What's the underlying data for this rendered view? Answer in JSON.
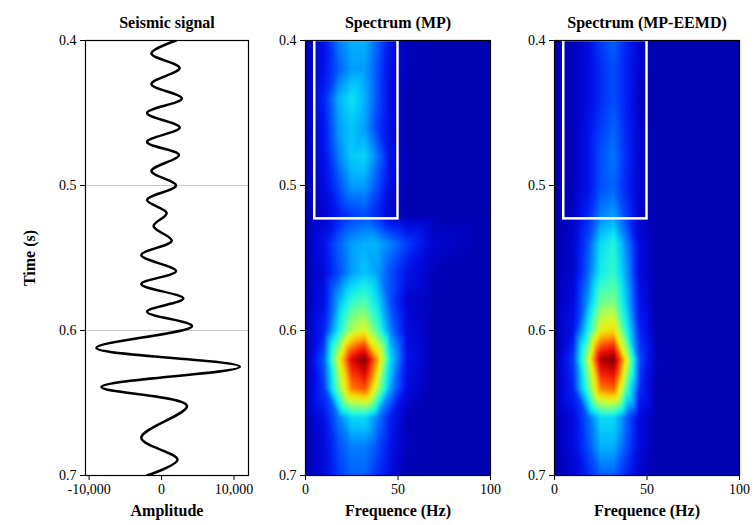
{
  "chart_data": [
    {
      "type": "line",
      "title": "Seismic signal",
      "xlabel": "Amplitude",
      "ylabel": "Time (s)",
      "color": "#000000",
      "grid": true,
      "x": [
        2000,
        -1400,
        2500,
        -1400,
        2800,
        -2000,
        2500,
        -2000,
        2400,
        -1400,
        2000,
        -2000,
        700,
        -1100,
        1400,
        -2800,
        2000,
        -2800,
        3000,
        -2000,
        4200,
        -9000,
        10800,
        -8300,
        3500,
        -2800,
        2200,
        -2000
      ],
      "y": [
        0.4,
        0.409,
        0.419,
        0.43,
        0.44,
        0.45,
        0.46,
        0.47,
        0.479,
        0.49,
        0.5,
        0.51,
        0.519,
        0.528,
        0.538,
        0.548,
        0.559,
        0.568,
        0.578,
        0.587,
        0.597,
        0.612,
        0.625,
        0.639,
        0.652,
        0.674,
        0.689,
        0.7
      ],
      "xlim": [
        -10500,
        12000
      ],
      "xticks": [
        {
          "value": -10000,
          "label": "-10,000"
        },
        0,
        {
          "value": 10000,
          "label": "10,000"
        }
      ],
      "ylim": [
        0.4,
        0.7
      ],
      "yticks": [
        0.4,
        0.5,
        0.6,
        0.7
      ]
    },
    {
      "type": "heatmap",
      "title": "Spectrum (MP)",
      "xlabel": "Frequence (Hz)",
      "x": [
        0,
        10,
        18,
        25,
        32,
        39,
        46,
        55,
        70,
        100
      ],
      "y": [
        0.4,
        0.42,
        0.44,
        0.46,
        0.48,
        0.5,
        0.52,
        0.54,
        0.56,
        0.58,
        0.6,
        0.62,
        0.64,
        0.66,
        0.68,
        0.7
      ],
      "z": [
        [
          0.05,
          0.12,
          0.25,
          0.3,
          0.3,
          0.22,
          0.12,
          0.06,
          0.05,
          0.05
        ],
        [
          0.05,
          0.12,
          0.22,
          0.28,
          0.28,
          0.2,
          0.1,
          0.06,
          0.05,
          0.05
        ],
        [
          0.05,
          0.15,
          0.3,
          0.36,
          0.3,
          0.2,
          0.1,
          0.05,
          0.05,
          0.05
        ],
        [
          0.05,
          0.13,
          0.28,
          0.32,
          0.28,
          0.18,
          0.1,
          0.05,
          0.05,
          0.05
        ],
        [
          0.05,
          0.12,
          0.25,
          0.33,
          0.34,
          0.24,
          0.12,
          0.05,
          0.05,
          0.05
        ],
        [
          0.05,
          0.1,
          0.2,
          0.28,
          0.28,
          0.2,
          0.1,
          0.05,
          0.05,
          0.05
        ],
        [
          0.05,
          0.08,
          0.14,
          0.18,
          0.2,
          0.15,
          0.08,
          0.05,
          0.05,
          0.05
        ],
        [
          0.05,
          0.12,
          0.22,
          0.28,
          0.3,
          0.3,
          0.25,
          0.18,
          0.08,
          0.05
        ],
        [
          0.05,
          0.1,
          0.2,
          0.28,
          0.32,
          0.28,
          0.2,
          0.12,
          0.06,
          0.05
        ],
        [
          0.05,
          0.12,
          0.3,
          0.42,
          0.45,
          0.35,
          0.2,
          0.08,
          0.05,
          0.05
        ],
        [
          0.05,
          0.15,
          0.38,
          0.55,
          0.6,
          0.45,
          0.25,
          0.1,
          0.05,
          0.05
        ],
        [
          0.05,
          0.22,
          0.6,
          0.9,
          1.0,
          0.7,
          0.35,
          0.12,
          0.05,
          0.05
        ],
        [
          0.05,
          0.18,
          0.5,
          0.75,
          0.8,
          0.55,
          0.28,
          0.1,
          0.05,
          0.05
        ],
        [
          0.05,
          0.12,
          0.25,
          0.35,
          0.35,
          0.25,
          0.14,
          0.06,
          0.05,
          0.05
        ],
        [
          0.05,
          0.1,
          0.2,
          0.25,
          0.25,
          0.2,
          0.12,
          0.06,
          0.05,
          0.05
        ],
        [
          0.05,
          0.1,
          0.18,
          0.22,
          0.22,
          0.16,
          0.1,
          0.05,
          0.05,
          0.05
        ]
      ],
      "zlim": [
        0,
        1
      ],
      "box": {
        "x": [
          5,
          50
        ],
        "y": [
          0.4,
          0.523
        ]
      },
      "xlim": [
        0,
        100
      ],
      "xticks": [
        0,
        50,
        100
      ],
      "ylim": [
        0.4,
        0.7
      ],
      "yticks": [
        0.4,
        0.5,
        0.6,
        0.7
      ]
    },
    {
      "type": "heatmap",
      "title": "Spectrum (MP-EEMD)",
      "xlabel": "Frequence (Hz)",
      "x": [
        0,
        10,
        18,
        25,
        32,
        39,
        46,
        55,
        70,
        100
      ],
      "y": [
        0.4,
        0.42,
        0.44,
        0.46,
        0.48,
        0.5,
        0.52,
        0.54,
        0.56,
        0.58,
        0.6,
        0.62,
        0.64,
        0.66,
        0.68,
        0.7
      ],
      "z": [
        [
          0.05,
          0.06,
          0.1,
          0.18,
          0.22,
          0.15,
          0.08,
          0.05,
          0.05,
          0.05
        ],
        [
          0.05,
          0.06,
          0.1,
          0.16,
          0.2,
          0.14,
          0.08,
          0.05,
          0.05,
          0.05
        ],
        [
          0.05,
          0.06,
          0.1,
          0.16,
          0.2,
          0.14,
          0.07,
          0.05,
          0.05,
          0.05
        ],
        [
          0.05,
          0.06,
          0.12,
          0.18,
          0.22,
          0.15,
          0.08,
          0.05,
          0.05,
          0.05
        ],
        [
          0.05,
          0.06,
          0.12,
          0.2,
          0.24,
          0.16,
          0.08,
          0.05,
          0.05,
          0.05
        ],
        [
          0.05,
          0.06,
          0.12,
          0.2,
          0.22,
          0.15,
          0.08,
          0.05,
          0.05,
          0.05
        ],
        [
          0.05,
          0.07,
          0.15,
          0.25,
          0.28,
          0.18,
          0.08,
          0.05,
          0.05,
          0.05
        ],
        [
          0.05,
          0.08,
          0.2,
          0.35,
          0.4,
          0.25,
          0.1,
          0.05,
          0.05,
          0.05
        ],
        [
          0.05,
          0.08,
          0.22,
          0.38,
          0.42,
          0.28,
          0.1,
          0.05,
          0.05,
          0.05
        ],
        [
          0.05,
          0.1,
          0.28,
          0.48,
          0.5,
          0.32,
          0.12,
          0.05,
          0.05,
          0.05
        ],
        [
          0.05,
          0.12,
          0.38,
          0.62,
          0.65,
          0.4,
          0.15,
          0.05,
          0.05,
          0.05
        ],
        [
          0.05,
          0.18,
          0.55,
          0.95,
          1.0,
          0.6,
          0.2,
          0.06,
          0.05,
          0.05
        ],
        [
          0.05,
          0.15,
          0.45,
          0.75,
          0.78,
          0.45,
          0.16,
          0.05,
          0.05,
          0.05
        ],
        [
          0.05,
          0.1,
          0.22,
          0.35,
          0.35,
          0.22,
          0.1,
          0.05,
          0.05,
          0.05
        ],
        [
          0.05,
          0.1,
          0.2,
          0.3,
          0.3,
          0.2,
          0.1,
          0.05,
          0.05,
          0.05
        ],
        [
          0.05,
          0.08,
          0.15,
          0.22,
          0.22,
          0.15,
          0.08,
          0.05,
          0.05,
          0.05
        ]
      ],
      "zlim": [
        0,
        1
      ],
      "box": {
        "x": [
          5,
          50
        ],
        "y": [
          0.4,
          0.523
        ]
      },
      "xlim": [
        0,
        100
      ],
      "xticks": [
        0,
        50,
        100
      ],
      "ylim": [
        0.4,
        0.7
      ],
      "yticks": [
        0.4,
        0.5,
        0.6,
        0.7
      ]
    }
  ]
}
